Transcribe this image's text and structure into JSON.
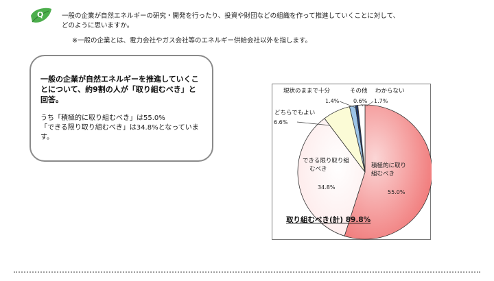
{
  "question": {
    "badge": "Q",
    "line1": "一般の企業が自然エネルギーの研究・開発を行ったり、投資や財団などの組織を作って推進していくことに対して、",
    "line2": "どのように思いますか。",
    "note": "※一般の企業とは、電力会社やガス会社等のエネルギー供給会社以外を指します。"
  },
  "summary": {
    "headline": "一般の企業が自然エネルギーを推進していくことについて、約9割の人が「取り組むべき」と回答。",
    "detail_1": "うち「積極的に取り組むべき」は55.0%",
    "detail_2": "「できる限り取り組むべき」は34.8%となっています。"
  },
  "chart_data": {
    "type": "pie",
    "slices": [
      {
        "label": "積極的に取り組むべき",
        "value": 55.0,
        "value_label": "55.0%",
        "color": "#ef6b6b"
      },
      {
        "label": "できる限り取り組むべき",
        "value": 34.8,
        "value_label": "34.8%",
        "color": "#fde6e6"
      },
      {
        "label": "どちらでもよい",
        "value": 6.6,
        "value_label": "6.6%",
        "color": "#fbfbd6"
      },
      {
        "label": "現状のままで十分",
        "value": 1.4,
        "value_label": "1.4%",
        "color": "#9cc4e8"
      },
      {
        "label": "その他",
        "value": 0.6,
        "value_label": "0.6%",
        "color": "#1f3566"
      },
      {
        "label": "わからない",
        "value": 1.7,
        "value_label": "1.7%",
        "color": "#ffffff"
      }
    ],
    "annotation": "取り組むべき(計) 89.8%"
  }
}
